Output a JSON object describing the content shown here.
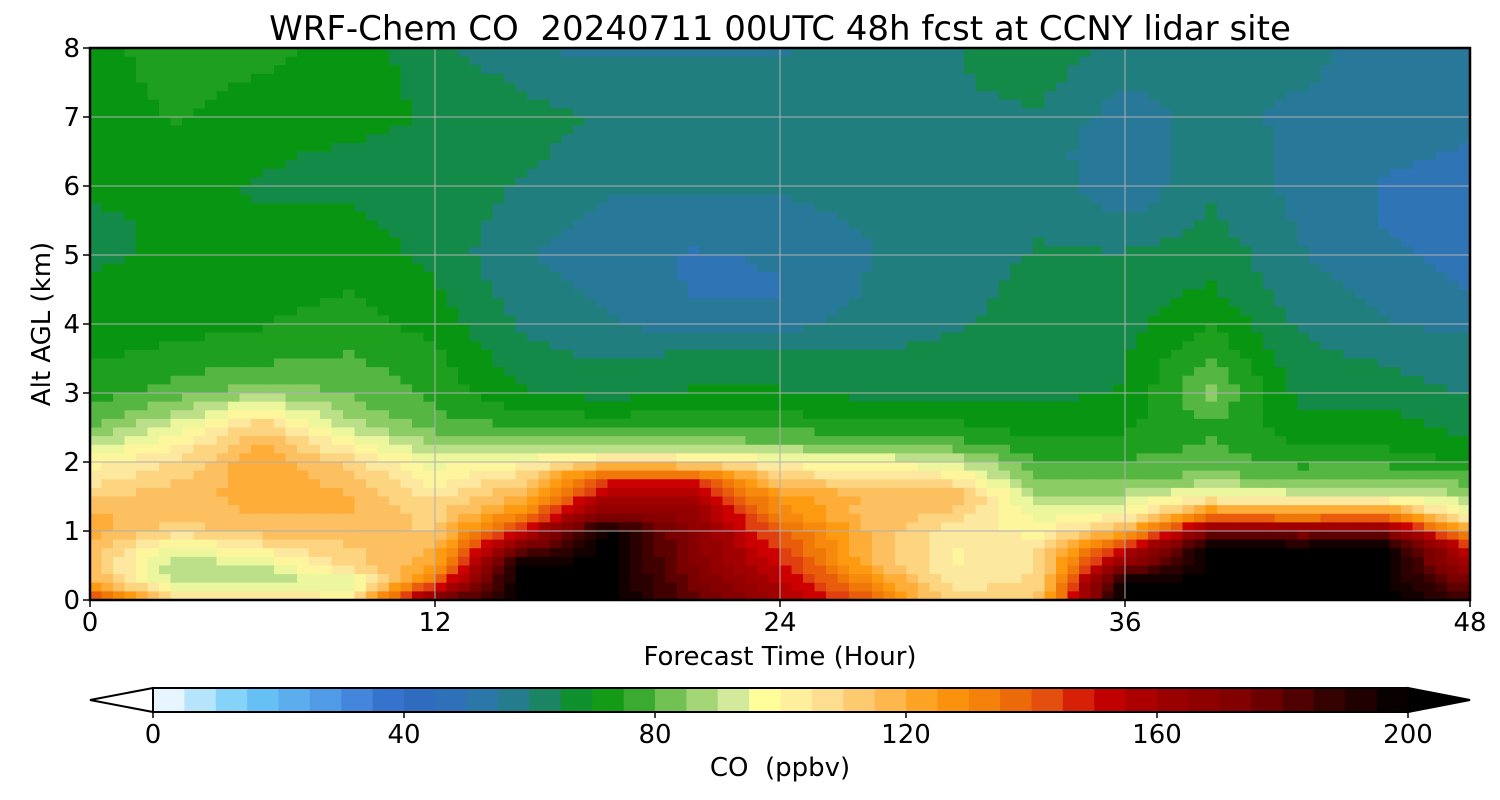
{
  "chart_data": {
    "type": "heatmap",
    "title": "WRF-Chem CO  20240711 00UTC 48h fcst at CCNY lidar site",
    "xlabel": "Forecast Time (Hour)",
    "ylabel": "Alt AGL (km)",
    "xlim": [
      0,
      48
    ],
    "ylim": [
      0,
      8
    ],
    "xticks": [
      0,
      12,
      24,
      36,
      48
    ],
    "yticks": [
      0,
      1,
      2,
      3,
      4,
      5,
      6,
      7,
      8
    ],
    "grid": true,
    "colorbar": {
      "label": "CO  (ppbv)",
      "min": 0,
      "max": 200,
      "step": 5,
      "extend": "both",
      "ticks": [
        0,
        40,
        80,
        120,
        160,
        200
      ]
    },
    "x": [
      0,
      3,
      6,
      9,
      12,
      15,
      18,
      21,
      24,
      27,
      30,
      33,
      36,
      39,
      42,
      45,
      48
    ],
    "y": [
      0,
      0.25,
      0.5,
      0.75,
      1,
      1.25,
      1.5,
      1.75,
      2,
      2.25,
      2.5,
      2.75,
      3,
      3.5,
      4,
      4.5,
      5,
      5.5,
      6,
      6.5,
      7,
      7.5,
      8
    ],
    "z": [
      [
        150,
        110,
        110,
        105,
        175,
        200,
        200,
        180,
        160,
        140,
        108,
        115,
        200,
        200,
        200,
        200,
        185
      ],
      [
        120,
        90,
        88,
        92,
        140,
        200,
        200,
        175,
        155,
        130,
        105,
        108,
        200,
        200,
        200,
        200,
        175
      ],
      [
        115,
        88,
        92,
        110,
        120,
        200,
        200,
        172,
        150,
        120,
        102,
        108,
        170,
        200,
        200,
        200,
        160
      ],
      [
        115,
        95,
        105,
        112,
        118,
        175,
        200,
        170,
        145,
        118,
        102,
        108,
        150,
        200,
        200,
        200,
        150
      ],
      [
        120,
        110,
        115,
        115,
        112,
        150,
        200,
        168,
        140,
        118,
        105,
        100,
        118,
        170,
        170,
        170,
        125
      ],
      [
        118,
        115,
        118,
        118,
        110,
        130,
        170,
        165,
        130,
        115,
        112,
        95,
        100,
        130,
        125,
        130,
        95
      ],
      [
        112,
        115,
        120,
        118,
        106,
        118,
        158,
        155,
        125,
        118,
        118,
        88,
        90,
        100,
        95,
        95,
        88
      ],
      [
        105,
        112,
        122,
        115,
        100,
        110,
        145,
        145,
        112,
        108,
        105,
        82,
        80,
        85,
        82,
        82,
        80
      ],
      [
        100,
        108,
        122,
        110,
        95,
        100,
        110,
        108,
        100,
        98,
        92,
        78,
        78,
        80,
        76,
        76,
        72
      ],
      [
        90,
        102,
        118,
        100,
        88,
        86,
        85,
        85,
        84,
        82,
        80,
        74,
        74,
        78,
        72,
        72,
        68
      ],
      [
        82,
        95,
        112,
        90,
        80,
        78,
        78,
        78,
        76,
        75,
        74,
        70,
        72,
        76,
        70,
        70,
        66
      ],
      [
        78,
        86,
        100,
        85,
        78,
        72,
        70,
        72,
        72,
        70,
        70,
        68,
        70,
        80,
        68,
        68,
        64
      ],
      [
        75,
        80,
        86,
        82,
        76,
        68,
        66,
        68,
        68,
        66,
        66,
        66,
        68,
        84,
        66,
        65,
        62
      ],
      [
        72,
        74,
        76,
        78,
        74,
        64,
        62,
        64,
        64,
        63,
        64,
        65,
        67,
        78,
        64,
        62,
        60
      ],
      [
        70,
        71,
        72,
        76,
        70,
        62,
        58,
        55,
        55,
        60,
        62,
        64,
        66,
        72,
        62,
        58,
        56
      ],
      [
        68,
        69,
        70,
        72,
        68,
        60,
        56,
        52,
        52,
        58,
        61,
        64,
        65,
        68,
        60,
        56,
        52
      ],
      [
        67,
        68,
        69,
        70,
        66,
        58,
        55,
        52,
        53,
        57,
        60,
        63,
        63,
        66,
        58,
        54,
        50
      ],
      [
        67,
        68,
        68,
        68,
        66,
        60,
        56,
        55,
        56,
        58,
        60,
        62,
        58,
        63,
        57,
        52,
        48
      ],
      [
        68,
        69,
        67,
        67,
        66,
        62,
        58,
        58,
        58,
        59,
        60,
        61,
        53,
        62,
        56,
        52,
        48
      ],
      [
        69,
        71,
        68,
        67,
        66,
        64,
        60,
        60,
        60,
        60,
        60,
        61,
        52,
        62,
        56,
        54,
        52
      ],
      [
        70,
        73,
        70,
        69,
        67,
        64,
        62,
        62,
        61,
        61,
        61,
        62,
        55,
        60,
        56,
        55,
        54
      ],
      [
        70,
        74,
        72,
        70,
        66,
        62,
        60,
        60,
        60,
        60,
        62,
        64,
        58,
        58,
        58,
        56,
        55
      ],
      [
        71,
        75,
        74,
        71,
        64,
        58,
        56,
        56,
        57,
        58,
        62,
        66,
        60,
        58,
        58,
        57,
        56
      ]
    ]
  },
  "colors": {
    "stops": [
      [
        0,
        "#ffffff"
      ],
      [
        15,
        "#6ccaf7"
      ],
      [
        30,
        "#4a90e2"
      ],
      [
        40,
        "#2f69c4"
      ],
      [
        50,
        "#2f74b4"
      ],
      [
        60,
        "#207e7e"
      ],
      [
        70,
        "#089612"
      ],
      [
        75,
        "#1ea01e"
      ],
      [
        85,
        "#8ccc64"
      ],
      [
        93,
        "#d8eca0"
      ],
      [
        97,
        "#ffff9a"
      ],
      [
        105,
        "#fde8a0"
      ],
      [
        115,
        "#fdc060"
      ],
      [
        125,
        "#fd9a10"
      ],
      [
        135,
        "#f07808"
      ],
      [
        145,
        "#e04010"
      ],
      [
        150,
        "#cc0000"
      ],
      [
        160,
        "#a10000"
      ],
      [
        175,
        "#7a0000"
      ],
      [
        185,
        "#400000"
      ],
      [
        200,
        "#000000"
      ]
    ],
    "grid": "#b0b0b0"
  }
}
